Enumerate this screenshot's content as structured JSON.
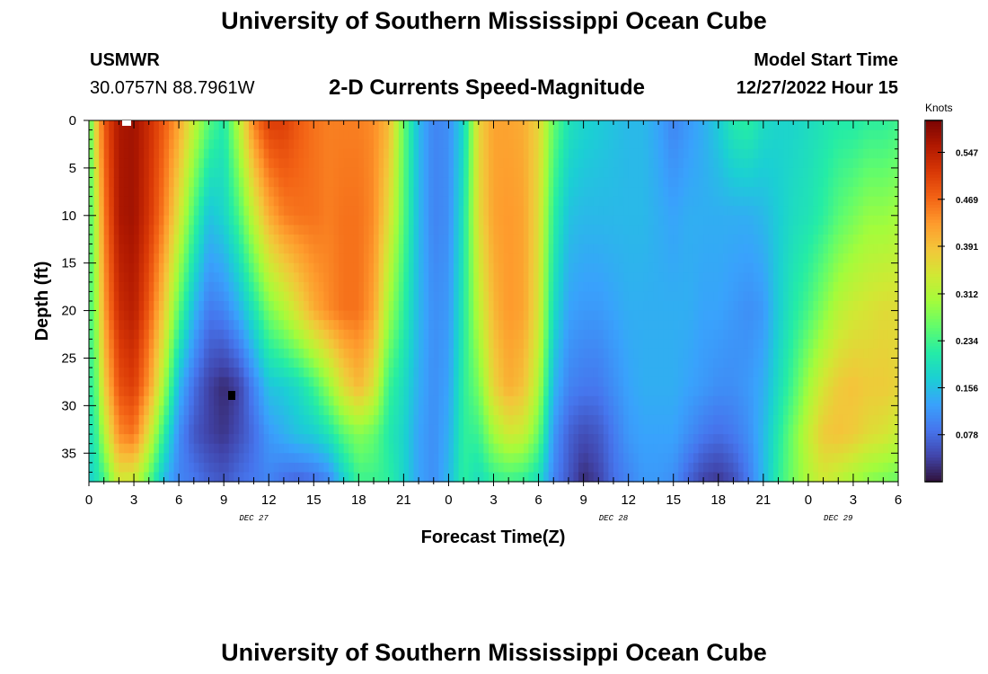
{
  "header": {
    "title": "University of Southern Mississippi Ocean Cube",
    "station": "USMWR",
    "coords": "30.0757N  88.7961W",
    "subtitle": "2-D Currents Speed-Magnitude",
    "model_start_label": "Model Start Time",
    "model_start_value": "12/27/2022 Hour 15"
  },
  "footer": {
    "title": "University of Southern Mississippi Ocean Cube"
  },
  "colors": {
    "scale": [
      "#30123b",
      "#4145ab",
      "#4675ed",
      "#39a2fc",
      "#1bcfd4",
      "#24eca6",
      "#61fc6c",
      "#a4fc3b",
      "#d1e834",
      "#f3c63a",
      "#fe9b2d",
      "#f36315",
      "#d93806",
      "#b11901",
      "#7a0403"
    ]
  },
  "chart_data": {
    "type": "heatmap",
    "title": "2-D Currents Speed-Magnitude",
    "xlabel": "Forecast Time(Z)",
    "ylabel": "Depth (ft)",
    "x_tick_labels": [
      "0",
      "3",
      "6",
      "9",
      "12",
      "15",
      "18",
      "21",
      "0",
      "3",
      "6",
      "9",
      "12",
      "15",
      "18",
      "21",
      "0",
      "3",
      "6"
    ],
    "x_range_hours": [
      0,
      54
    ],
    "date_labels": [
      {
        "label": "DEC 27",
        "hour": 11
      },
      {
        "label": "DEC 28",
        "hour": 35
      },
      {
        "label": "DEC 29",
        "hour": 50
      }
    ],
    "y_ticks": [
      0,
      5,
      10,
      15,
      20,
      25,
      30,
      35
    ],
    "y_range": [
      0,
      38
    ],
    "colorbar": {
      "title": "Knots",
      "ticks": [
        0.547,
        0.469,
        0.391,
        0.312,
        0.234,
        0.156,
        0.078
      ],
      "range": [
        0,
        0.6
      ]
    },
    "speed_profiles_knots": {
      "hours": [
        0,
        0.5,
        1,
        2,
        3,
        4,
        5,
        6,
        7,
        8,
        9,
        10,
        11,
        12,
        13,
        14,
        15,
        16,
        17,
        18,
        19,
        20,
        21,
        22,
        23,
        24,
        25,
        26,
        27,
        28,
        29,
        30,
        31,
        32,
        33,
        34,
        35,
        36,
        37,
        38,
        39,
        40,
        41,
        42,
        43,
        44,
        45,
        46,
        47,
        48,
        49,
        50,
        51,
        52,
        53,
        54
      ],
      "depths_ft": [
        0,
        10,
        20,
        28,
        33,
        38
      ],
      "values": [
        [
          0.23,
          0.23,
          0.23,
          0.21,
          0.19,
          0.17
        ],
        [
          0.38,
          0.33,
          0.3,
          0.26,
          0.23,
          0.2
        ],
        [
          0.48,
          0.45,
          0.42,
          0.37,
          0.31,
          0.23
        ],
        [
          0.56,
          0.56,
          0.53,
          0.49,
          0.44,
          0.34
        ],
        [
          0.57,
          0.57,
          0.55,
          0.51,
          0.46,
          0.33
        ],
        [
          0.53,
          0.52,
          0.48,
          0.43,
          0.35,
          0.25
        ],
        [
          0.48,
          0.45,
          0.38,
          0.3,
          0.22,
          0.15
        ],
        [
          0.42,
          0.35,
          0.25,
          0.15,
          0.11,
          0.1
        ],
        [
          0.33,
          0.24,
          0.15,
          0.08,
          0.06,
          0.09
        ],
        [
          0.25,
          0.16,
          0.09,
          0.04,
          0.04,
          0.07
        ],
        [
          0.21,
          0.18,
          0.1,
          0.02,
          0.03,
          0.06
        ],
        [
          0.32,
          0.24,
          0.14,
          0.04,
          0.05,
          0.08
        ],
        [
          0.45,
          0.33,
          0.2,
          0.1,
          0.08,
          0.09
        ],
        [
          0.51,
          0.41,
          0.27,
          0.16,
          0.12,
          0.1
        ],
        [
          0.51,
          0.45,
          0.31,
          0.17,
          0.14,
          0.08
        ],
        [
          0.48,
          0.46,
          0.36,
          0.19,
          0.16,
          0.07
        ],
        [
          0.46,
          0.46,
          0.41,
          0.23,
          0.17,
          0.08
        ],
        [
          0.45,
          0.45,
          0.44,
          0.29,
          0.2,
          0.1
        ],
        [
          0.45,
          0.46,
          0.46,
          0.36,
          0.25,
          0.17
        ],
        [
          0.45,
          0.46,
          0.46,
          0.4,
          0.28,
          0.23
        ],
        [
          0.44,
          0.44,
          0.42,
          0.35,
          0.26,
          0.23
        ],
        [
          0.4,
          0.36,
          0.3,
          0.23,
          0.21,
          0.22
        ],
        [
          0.26,
          0.25,
          0.22,
          0.19,
          0.18,
          0.18
        ],
        [
          0.15,
          0.15,
          0.15,
          0.14,
          0.13,
          0.13
        ],
        [
          0.1,
          0.1,
          0.11,
          0.11,
          0.11,
          0.11
        ],
        [
          0.11,
          0.11,
          0.12,
          0.13,
          0.14,
          0.15
        ],
        [
          0.18,
          0.2,
          0.21,
          0.22,
          0.22,
          0.22
        ],
        [
          0.37,
          0.36,
          0.32,
          0.27,
          0.23,
          0.19
        ],
        [
          0.42,
          0.42,
          0.4,
          0.37,
          0.3,
          0.22
        ],
        [
          0.42,
          0.43,
          0.43,
          0.41,
          0.34,
          0.23
        ],
        [
          0.41,
          0.42,
          0.42,
          0.39,
          0.33,
          0.22
        ],
        [
          0.37,
          0.36,
          0.35,
          0.31,
          0.26,
          0.19
        ],
        [
          0.26,
          0.22,
          0.19,
          0.15,
          0.12,
          0.1
        ],
        [
          0.2,
          0.16,
          0.13,
          0.1,
          0.07,
          0.06
        ],
        [
          0.18,
          0.15,
          0.12,
          0.09,
          0.05,
          0.02
        ],
        [
          0.17,
          0.15,
          0.12,
          0.09,
          0.06,
          0.04
        ],
        [
          0.16,
          0.15,
          0.13,
          0.11,
          0.09,
          0.08
        ],
        [
          0.15,
          0.15,
          0.14,
          0.13,
          0.12,
          0.1
        ],
        [
          0.15,
          0.15,
          0.14,
          0.14,
          0.13,
          0.12
        ],
        [
          0.13,
          0.14,
          0.14,
          0.14,
          0.13,
          0.12
        ],
        [
          0.1,
          0.13,
          0.14,
          0.14,
          0.13,
          0.11
        ],
        [
          0.12,
          0.14,
          0.14,
          0.13,
          0.11,
          0.07
        ],
        [
          0.14,
          0.14,
          0.13,
          0.12,
          0.09,
          0.04
        ],
        [
          0.17,
          0.14,
          0.13,
          0.11,
          0.08,
          0.03
        ],
        [
          0.21,
          0.14,
          0.12,
          0.11,
          0.09,
          0.05
        ],
        [
          0.22,
          0.14,
          0.11,
          0.12,
          0.11,
          0.09
        ],
        [
          0.19,
          0.15,
          0.12,
          0.14,
          0.15,
          0.15
        ],
        [
          0.18,
          0.17,
          0.17,
          0.19,
          0.21,
          0.22
        ],
        [
          0.18,
          0.19,
          0.21,
          0.24,
          0.27,
          0.27
        ],
        [
          0.19,
          0.2,
          0.24,
          0.3,
          0.33,
          0.31
        ],
        [
          0.2,
          0.22,
          0.28,
          0.35,
          0.38,
          0.34
        ],
        [
          0.21,
          0.25,
          0.32,
          0.38,
          0.39,
          0.32
        ],
        [
          0.21,
          0.27,
          0.34,
          0.39,
          0.38,
          0.3
        ],
        [
          0.22,
          0.29,
          0.35,
          0.38,
          0.36,
          0.28
        ],
        [
          0.22,
          0.29,
          0.36,
          0.38,
          0.35,
          0.27
        ],
        [
          0.23,
          0.3,
          0.36,
          0.37,
          0.33,
          0.26
        ]
      ]
    }
  }
}
